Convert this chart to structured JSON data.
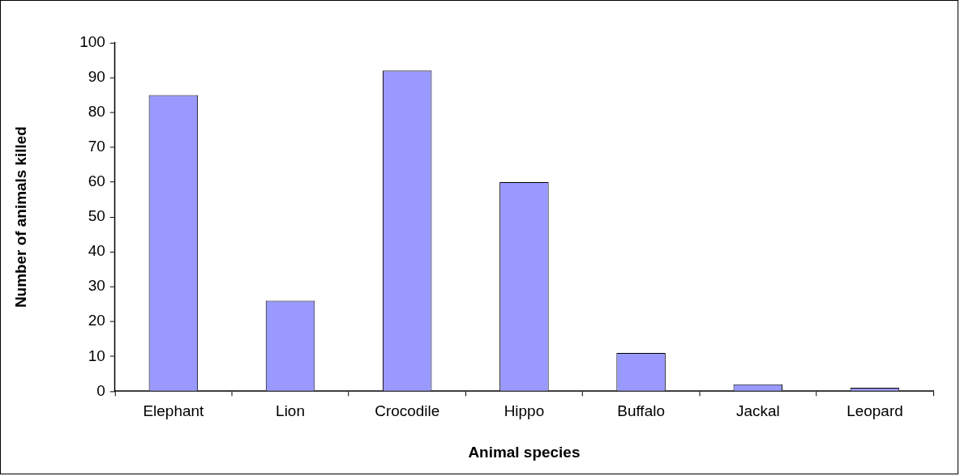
{
  "chart_data": {
    "type": "bar",
    "xlabel": "Animal species",
    "ylabel": "Number of animals killed",
    "categories": [
      "Elephant",
      "Lion",
      "Crocodile",
      "Hippo",
      "Buffalo",
      "Jackal",
      "Leopard"
    ],
    "values": [
      85,
      26,
      92,
      60,
      11,
      2,
      1
    ],
    "color": "#9999ff",
    "ylim": [
      0,
      100
    ],
    "yticks": [
      0,
      10,
      20,
      30,
      40,
      50,
      60,
      70,
      80,
      90,
      100
    ],
    "grid": false,
    "legend": false
  }
}
